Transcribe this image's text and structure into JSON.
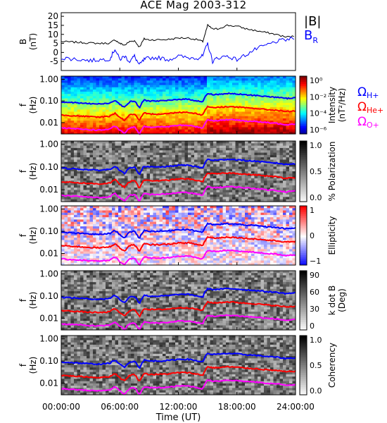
{
  "title": "ACE Mag 2003-312",
  "chart_data": [
    {
      "type": "line",
      "panel": "magnetic-field",
      "ylabel": "B",
      "yunit": "(nT)",
      "ylim": [
        -10,
        22
      ],
      "yticks": [
        -5,
        0,
        5,
        10,
        15,
        20
      ],
      "xlim": [
        0,
        24
      ],
      "series": [
        {
          "name": "|B|",
          "color": "#000000",
          "x": [
            0,
            1,
            2,
            3,
            4,
            5,
            5.5,
            6,
            6.5,
            7,
            7.5,
            8,
            8.5,
            9,
            10,
            11,
            12,
            13,
            14,
            14.5,
            15,
            15.5,
            16,
            17,
            18,
            19,
            20,
            21,
            22,
            23,
            24
          ],
          "values": [
            6,
            5.8,
            5.5,
            5.2,
            5,
            5.2,
            7,
            5,
            4,
            6,
            6.5,
            3,
            7.5,
            7,
            7,
            7.2,
            8,
            8,
            7,
            6,
            15,
            13,
            13,
            15,
            14.5,
            13,
            12,
            11,
            10,
            8.5,
            9
          ]
        },
        {
          "name": "B_R",
          "color": "#0000ff",
          "x": [
            0,
            1,
            2,
            3,
            4,
            5,
            5.5,
            6,
            6.5,
            7,
            7.5,
            8,
            8.5,
            9,
            10,
            11,
            12,
            13,
            14,
            14.5,
            15,
            15.5,
            16,
            17,
            18,
            19,
            20,
            21,
            22,
            23,
            24
          ],
          "values": [
            -3,
            -3.5,
            -4,
            -4.5,
            -4,
            -3.5,
            2,
            -4,
            -2,
            -5,
            -2,
            -7,
            -4,
            -3,
            -3,
            -4,
            -2,
            -3,
            -3,
            -2,
            5,
            -5,
            -3,
            -2,
            -4,
            -1,
            2,
            4,
            6,
            7,
            8
          ]
        }
      ],
      "legend": [
        {
          "label": "|B|",
          "color": "#000000"
        },
        {
          "label": "B",
          "sub": "R",
          "color": "#0000ff"
        }
      ]
    },
    {
      "type": "heatmap",
      "panel": "intensity",
      "ylabel": "f",
      "yunit": "(Hz)",
      "yticks": [
        "1.00",
        "0.10",
        "0.01"
      ],
      "colorbar": {
        "label": "Intensity",
        "unit": "(nT²/Hz)",
        "scale": "log",
        "ticks": [
          "10⁰",
          "10⁻²",
          "10⁻⁴",
          "10⁻⁶"
        ]
      },
      "overlays": [
        {
          "label": "Ω",
          "sub": "H+",
          "color": "#0000ff"
        },
        {
          "label": "Ω",
          "sub": "He+",
          "color": "#ff0000"
        },
        {
          "label": "Ω",
          "sub": "O+",
          "color": "#ff00ff"
        }
      ]
    },
    {
      "type": "heatmap",
      "panel": "polarization",
      "ylabel": "f",
      "yunit": "(Hz)",
      "yticks": [
        "1.00",
        "0.10",
        "0.01"
      ],
      "colorbar": {
        "label": "% Polarization",
        "unit": "",
        "ticks": [
          "1.0",
          "0.5",
          "0.0"
        ]
      }
    },
    {
      "type": "heatmap",
      "panel": "ellipticity",
      "ylabel": "f",
      "yunit": "(Hz)",
      "yticks": [
        "1.00",
        "0.10",
        "0.01"
      ],
      "colorbar": {
        "label": "Ellipticity",
        "unit": "",
        "ticks": [
          "1",
          "0",
          "−1"
        ]
      }
    },
    {
      "type": "heatmap",
      "panel": "wave-normal-angle",
      "ylabel": "f",
      "yunit": "(Hz)",
      "yticks": [
        "1.00",
        "0.10",
        "0.01"
      ],
      "colorbar": {
        "label": "k dot B",
        "unit": "(Deg)",
        "ticks": [
          "90",
          "60",
          "30",
          "0"
        ]
      }
    },
    {
      "type": "heatmap",
      "panel": "coherency",
      "ylabel": "f",
      "yunit": "(Hz)",
      "yticks": [
        "1.00",
        "0.10",
        "0.01"
      ],
      "colorbar": {
        "label": "Coherency",
        "unit": "",
        "ticks": [
          "1.0",
          "0.5",
          "0.0"
        ]
      }
    }
  ],
  "gyro_lines": {
    "x": [
      0,
      1,
      2,
      3,
      4,
      5,
      5.5,
      6,
      6.5,
      7,
      7.5,
      8,
      8.5,
      9,
      10,
      11,
      12,
      13,
      14,
      14.5,
      15,
      15.5,
      16,
      17,
      18,
      19,
      20,
      21,
      22,
      23,
      24
    ],
    "H": [
      0.09,
      0.085,
      0.08,
      0.075,
      0.072,
      0.08,
      0.11,
      0.07,
      0.05,
      0.09,
      0.1,
      0.045,
      0.11,
      0.1,
      0.1,
      0.105,
      0.12,
      0.12,
      0.1,
      0.09,
      0.22,
      0.2,
      0.2,
      0.22,
      0.21,
      0.19,
      0.18,
      0.16,
      0.15,
      0.13,
      0.14
    ]
  },
  "xaxis": {
    "label": "Time (UT)",
    "ticks": [
      "00:00:00",
      "06:00:00",
      "12:00:00",
      "18:00:00",
      "24:00:00"
    ]
  }
}
